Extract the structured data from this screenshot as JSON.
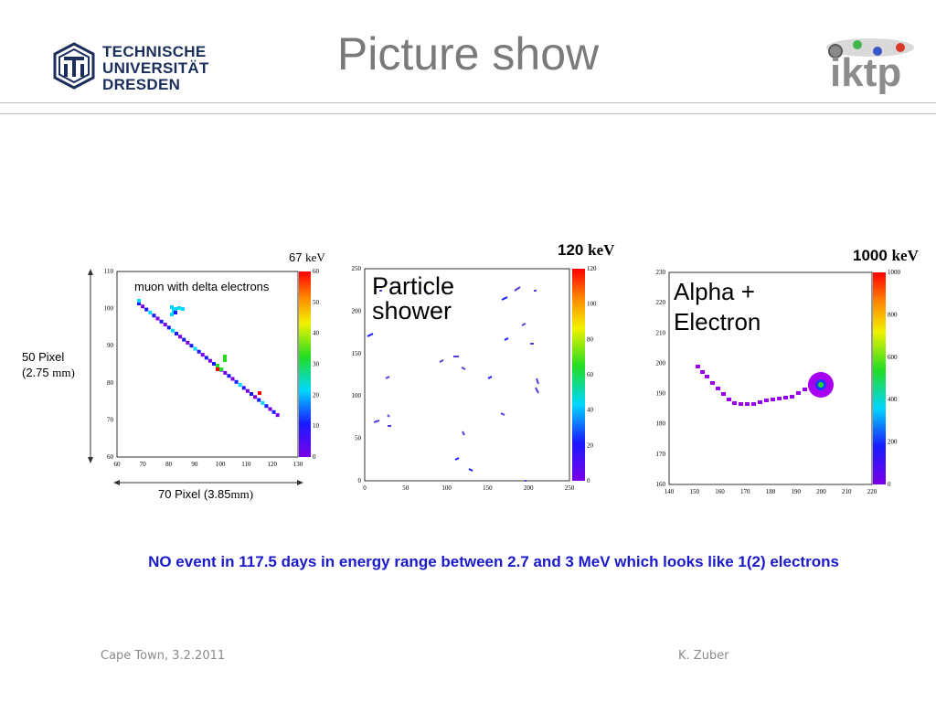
{
  "slide": {
    "title": "Picture show",
    "tud_logo": {
      "line1": "TECHNISCHE",
      "line2": "UNIVERSITÄT",
      "line3": "DRESDEN"
    },
    "iktp_logo": {
      "text": "iktp"
    },
    "note": "NO event in 117.5 days in energy range between 2.7 and 3 MeV which looks like 1(2) electrons",
    "footer": {
      "left": "Cape Town, 3.2.2011",
      "right": "K. Zuber"
    },
    "colors": {
      "title": "#7a7a7a",
      "note": "#1a1acc",
      "tud_blue": "#1b2e5c"
    }
  },
  "panels": [
    {
      "label": "muon with delta electrons",
      "energy_value": "67",
      "energy_unit": "keV",
      "y_dim": {
        "label": "50 Pixel",
        "value": "(2.75",
        "unit": "mm)"
      },
      "x_dim": {
        "label": "70 Pixel (3.85",
        "unit": "mm)"
      },
      "x_ticks": [
        "60",
        "70",
        "80",
        "90",
        "100",
        "110",
        "120",
        "130"
      ],
      "y_ticks": [
        "60",
        "70",
        "80",
        "90",
        "100",
        "110"
      ],
      "scale_ticks": [
        "0",
        "10",
        "20",
        "30",
        "40",
        "50",
        "60"
      ]
    },
    {
      "label_line1": "Particle",
      "label_line2": "shower",
      "energy_value": "120",
      "energy_unit": "keV",
      "x_ticks": [
        "0",
        "50",
        "100",
        "150",
        "200",
        "250"
      ],
      "y_ticks": [
        "0",
        "50",
        "100",
        "150",
        "200",
        "250"
      ],
      "scale_ticks": [
        "0",
        "20",
        "40",
        "60",
        "80",
        "100",
        "120"
      ]
    },
    {
      "label_line1": "Alpha +",
      "label_line2": "Electron",
      "energy_value": "1000",
      "energy_unit": "keV",
      "x_ticks": [
        "140",
        "150",
        "160",
        "170",
        "180",
        "190",
        "200",
        "210",
        "220"
      ],
      "y_ticks": [
        "160",
        "170",
        "180",
        "190",
        "200",
        "210",
        "220",
        "230"
      ],
      "scale_ticks": [
        "0",
        "200",
        "400",
        "600",
        "800",
        "1000"
      ]
    }
  ]
}
